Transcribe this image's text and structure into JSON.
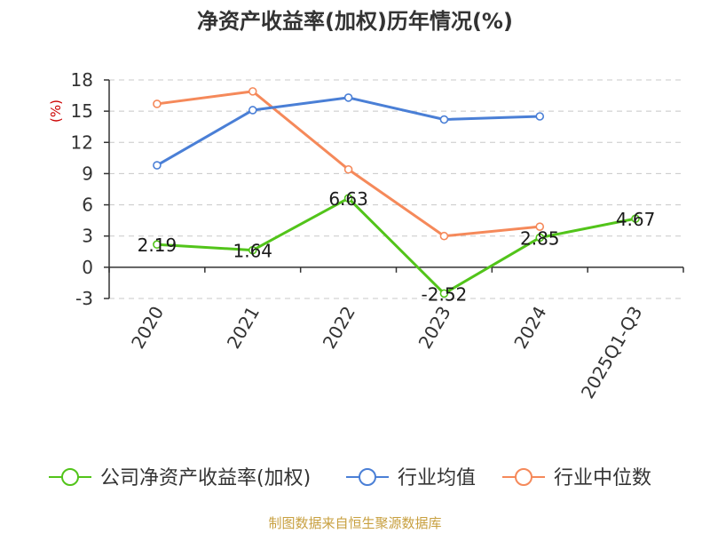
{
  "chart_data": {
    "type": "line",
    "title": "净资产收益率(加权)历年情况(%)",
    "ylabel": "(%)",
    "xlabel": "",
    "categories": [
      "2020",
      "2021",
      "2022",
      "2023",
      "2024",
      "2025Q1-Q3"
    ],
    "ylim": [
      -3,
      18
    ],
    "yticks": [
      -3,
      0,
      3,
      6,
      9,
      12,
      15,
      18
    ],
    "grid": true,
    "legend_position": "bottom",
    "series": [
      {
        "name": "公司净资产收益率(加权)",
        "color": "#52c41a",
        "values": [
          2.19,
          1.64,
          6.63,
          -2.52,
          2.85,
          4.67
        ],
        "labels": [
          "2.19",
          "1.64",
          "6.63",
          "-2.52",
          "2.85",
          "4.67"
        ]
      },
      {
        "name": "行业均值",
        "color": "#4a7fd6",
        "values": [
          9.8,
          15.1,
          16.3,
          14.2,
          14.5,
          null
        ]
      },
      {
        "name": "行业中位数",
        "color": "#f5895a",
        "values": [
          15.7,
          16.9,
          9.4,
          3.0,
          3.9,
          null
        ]
      }
    ]
  },
  "source": "制图数据来自恒生聚源数据库"
}
